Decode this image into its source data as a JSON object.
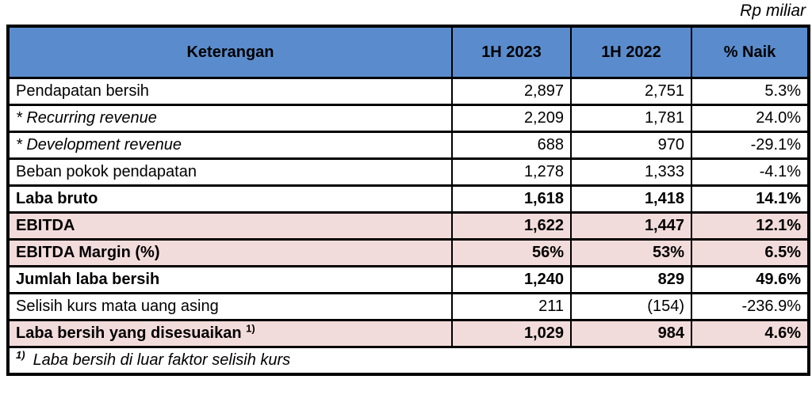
{
  "unit_label": "Rp miliar",
  "colors": {
    "header_bg": "#5A8CCD",
    "highlight_bg": "#F2DCDB",
    "border": "#000000",
    "text": "#000000"
  },
  "table": {
    "headers": {
      "keterangan": "Keterangan",
      "h2023": "1H 2023",
      "h2022": "1H 2022",
      "naik": "% Naik"
    },
    "rows": [
      {
        "label": "Pendapatan bersih",
        "v2023": "2,897",
        "v2022": "2,751",
        "naik": "5.3%"
      },
      {
        "label": "* Recurring revenue",
        "v2023": "2,209",
        "v2022": "1,781",
        "naik": "24.0%"
      },
      {
        "label": "* Development revenue",
        "v2023": "688",
        "v2022": "970",
        "naik": "-29.1%"
      },
      {
        "label": "Beban pokok pendapatan",
        "v2023": "1,278",
        "v2022": "1,333",
        "naik": "-4.1%"
      },
      {
        "label": "Laba bruto",
        "v2023": "1,618",
        "v2022": "1,418",
        "naik": "14.1%"
      },
      {
        "label": "EBITDA",
        "v2023": "1,622",
        "v2022": "1,447",
        "naik": "12.1%"
      },
      {
        "label": "EBITDA Margin (%)",
        "v2023": "56%",
        "v2022": "53%",
        "naik": "6.5%"
      },
      {
        "label": "Jumlah laba bersih",
        "v2023": "1,240",
        "v2022": "829",
        "naik": "49.6%"
      },
      {
        "label": "Selisih kurs mata uang asing",
        "v2023": "211",
        "v2022": "(154)",
        "naik": "-236.9%"
      },
      {
        "label": "Laba bersih yang disesuaikan",
        "sup": "1)",
        "v2023": "1,029",
        "v2022": "984",
        "naik": "4.6%"
      }
    ],
    "footnote": {
      "marker": "1)",
      "text": "Laba bersih di luar faktor selisih kurs"
    }
  }
}
